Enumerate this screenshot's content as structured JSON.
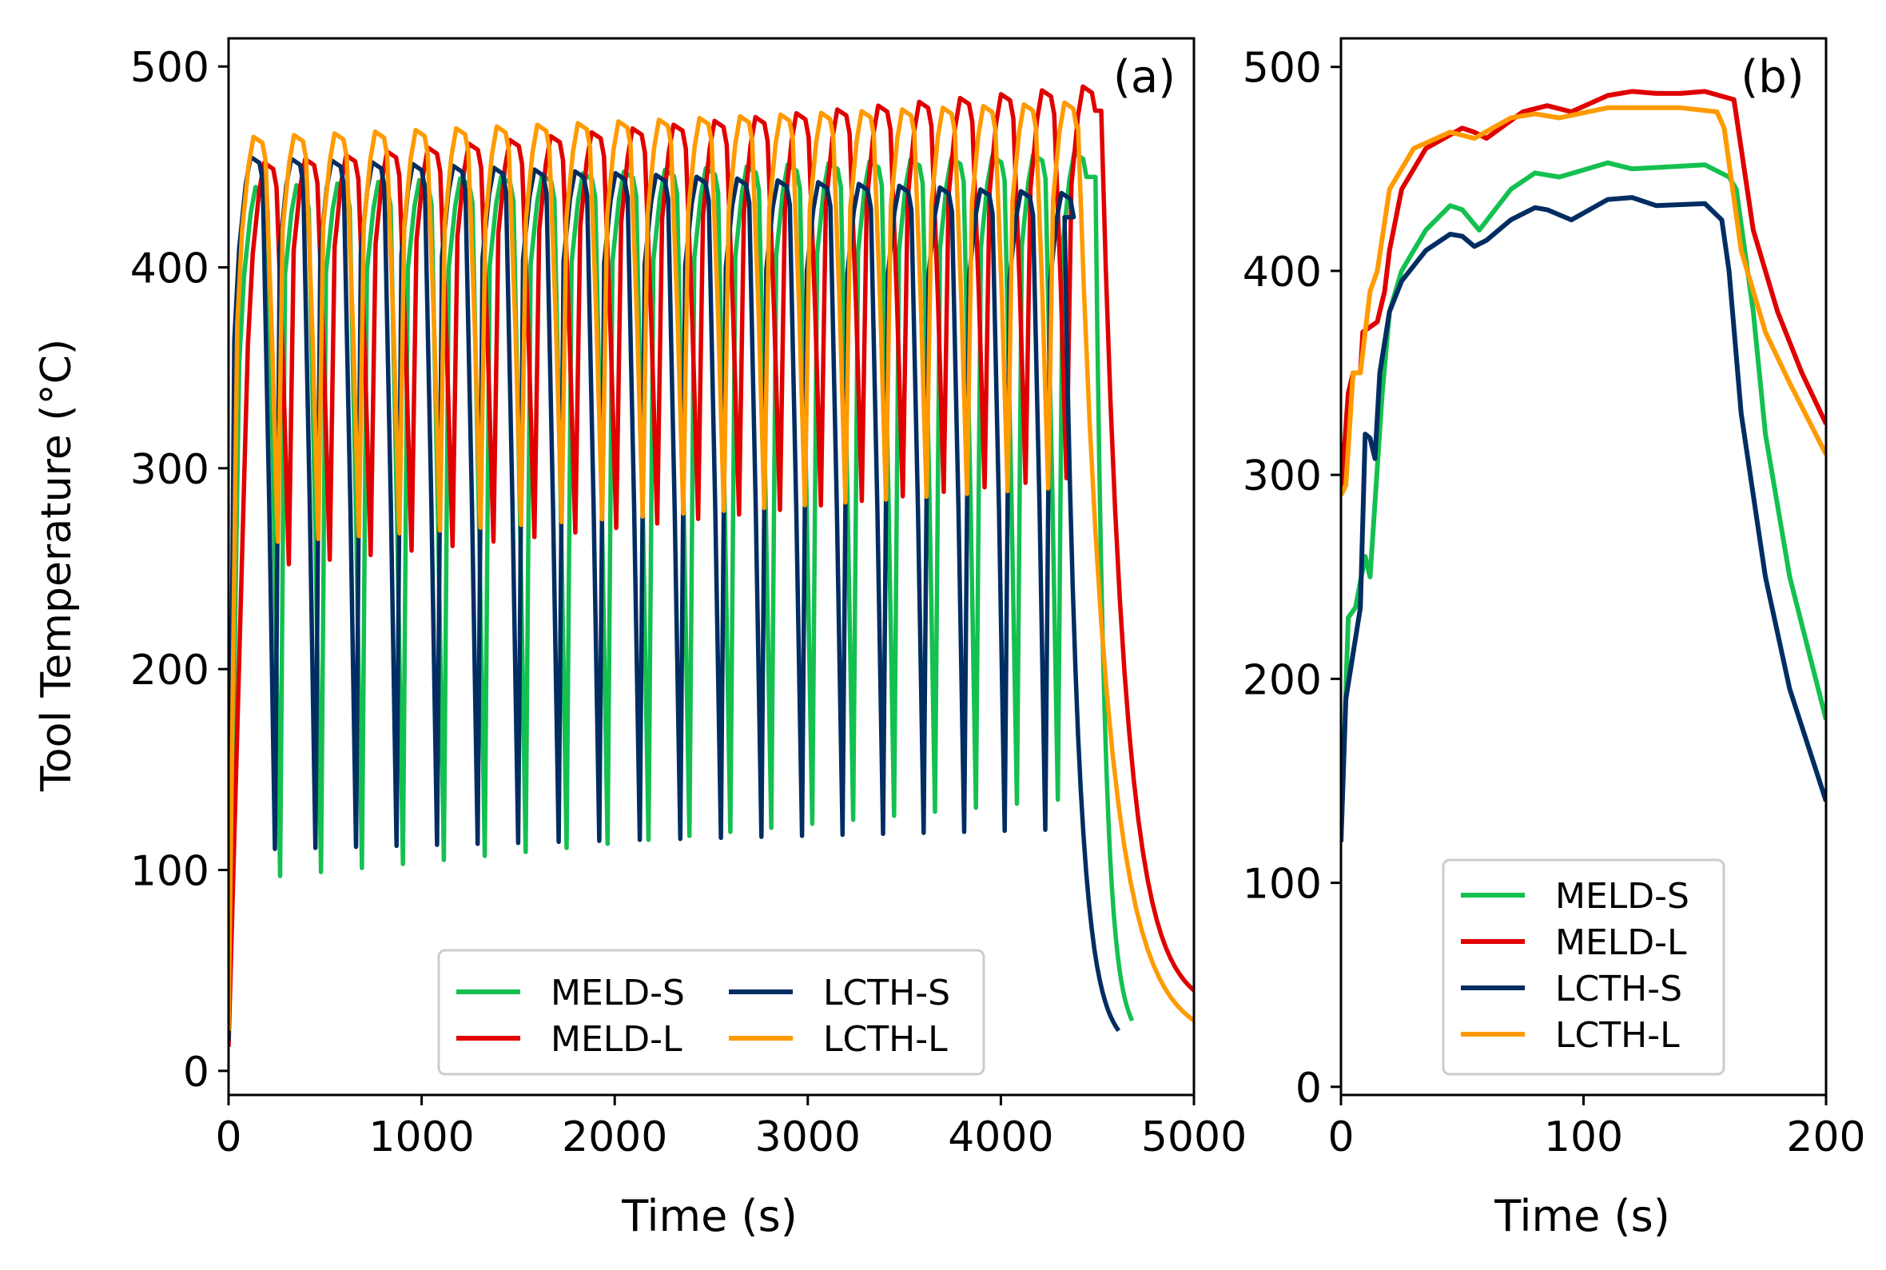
{
  "colors": {
    "MELD-S": "#14c050",
    "MELD-L": "#e00000",
    "LCTH-S": "#002d62",
    "LCTH-L": "#ff9a00"
  },
  "chart_data": [
    {
      "type": "line",
      "panel_label": "(a)",
      "xlabel": "Time (s)",
      "ylabel": "Tool Temperature (°C)",
      "xlim": [
        0,
        5000
      ],
      "ylim": [
        -12,
        514
      ],
      "xticks": [
        0,
        1000,
        2000,
        3000,
        4000,
        5000
      ],
      "yticks": [
        0,
        100,
        200,
        300,
        400,
        500
      ],
      "legend": {
        "placement": "lower-center",
        "columns": 2,
        "order": [
          "MELD-S",
          "MELD-L",
          "LCTH-S",
          "LCTH-L"
        ]
      },
      "series": [
        {
          "name": "MELD-S",
          "start_value": 15,
          "first_cycle_start": 40,
          "period": 212,
          "cycles": 21,
          "phase": 15,
          "peak_start": 440,
          "peak_end": 457,
          "trough_start": 95,
          "trough_end": 135,
          "end_time": 4490,
          "final_time": 4680,
          "final_value": 25
        },
        {
          "name": "MELD-L",
          "start_value": 12,
          "first_cycle_start": 60,
          "period": 212,
          "cycles": 21,
          "phase": 40,
          "peak_start": 452,
          "peak_end": 490,
          "trough_start": 250,
          "trough_end": 295,
          "end_time": 4520,
          "final_time": 5000,
          "final_value": 40
        },
        {
          "name": "LCTH-S",
          "start_value": 15,
          "first_cycle_start": 30,
          "period": 210,
          "cycles": 21,
          "phase": 0,
          "peak_start": 455,
          "peak_end": 437,
          "trough_start": 110,
          "trough_end": 120,
          "end_time": 4330,
          "final_time": 4610,
          "final_value": 20
        },
        {
          "name": "LCTH-L",
          "start_value": 20,
          "first_cycle_start": 20,
          "period": 210,
          "cycles": 21,
          "phase": 25,
          "peak_start": 465,
          "peak_end": 482,
          "trough_start": 262,
          "trough_end": 290,
          "end_time": 4400,
          "final_time": 5000,
          "final_value": 25
        }
      ]
    },
    {
      "type": "line",
      "panel_label": "(b)",
      "xlabel": "Time (s)",
      "ylabel": "",
      "xlim": [
        0,
        200
      ],
      "ylim": [
        -4,
        514
      ],
      "xticks": [
        0,
        100,
        200
      ],
      "yticks": [
        0,
        100,
        200,
        300,
        400,
        500
      ],
      "legend": {
        "placement": "lower-center",
        "columns": 1,
        "order": [
          "MELD-S",
          "MELD-L",
          "LCTH-S",
          "LCTH-L"
        ]
      },
      "series": [
        {
          "name": "MELD-S",
          "points": [
            [
              0,
              120
            ],
            [
              3,
              230
            ],
            [
              6,
              235
            ],
            [
              10,
              260
            ],
            [
              12,
              250
            ],
            [
              17,
              340
            ],
            [
              20,
              380
            ],
            [
              25,
              400
            ],
            [
              35,
              420
            ],
            [
              45,
              432
            ],
            [
              50,
              430
            ],
            [
              57,
              420
            ],
            [
              70,
              440
            ],
            [
              80,
              448
            ],
            [
              90,
              446
            ],
            [
              110,
              453
            ],
            [
              120,
              450
            ],
            [
              150,
              452
            ],
            [
              160,
              446
            ],
            [
              163,
              440
            ],
            [
              170,
              380
            ],
            [
              175,
              320
            ],
            [
              185,
              250
            ],
            [
              200,
              180
            ]
          ]
        },
        {
          "name": "MELD-L",
          "points": [
            [
              0,
              290
            ],
            [
              3,
              340
            ],
            [
              5,
              350
            ],
            [
              8,
              350
            ],
            [
              9,
              370
            ],
            [
              15,
              375
            ],
            [
              18,
              390
            ],
            [
              20,
              410
            ],
            [
              25,
              440
            ],
            [
              35,
              460
            ],
            [
              50,
              470
            ],
            [
              55,
              468
            ],
            [
              60,
              465
            ],
            [
              75,
              478
            ],
            [
              85,
              481
            ],
            [
              95,
              478
            ],
            [
              110,
              486
            ],
            [
              120,
              488
            ],
            [
              130,
              487
            ],
            [
              140,
              487
            ],
            [
              150,
              488
            ],
            [
              162,
              484
            ],
            [
              165,
              460
            ],
            [
              170,
              420
            ],
            [
              180,
              380
            ],
            [
              190,
              350
            ],
            [
              200,
              325
            ]
          ]
        },
        {
          "name": "LCTH-S",
          "points": [
            [
              0,
              120
            ],
            [
              2,
              190
            ],
            [
              8,
              235
            ],
            [
              10,
              320
            ],
            [
              12,
              318
            ],
            [
              14,
              308
            ],
            [
              16,
              350
            ],
            [
              20,
              380
            ],
            [
              25,
              395
            ],
            [
              35,
              410
            ],
            [
              45,
              418
            ],
            [
              50,
              417
            ],
            [
              55,
              412
            ],
            [
              60,
              415
            ],
            [
              70,
              425
            ],
            [
              80,
              431
            ],
            [
              85,
              430
            ],
            [
              95,
              425
            ],
            [
              110,
              435
            ],
            [
              120,
              436
            ],
            [
              130,
              432
            ],
            [
              150,
              433
            ],
            [
              157,
              425
            ],
            [
              160,
              400
            ],
            [
              165,
              330
            ],
            [
              175,
              250
            ],
            [
              185,
              195
            ],
            [
              200,
              140
            ]
          ]
        },
        {
          "name": "LCTH-L",
          "points": [
            [
              0,
              290
            ],
            [
              2,
              295
            ],
            [
              5,
              350
            ],
            [
              8,
              350
            ],
            [
              12,
              390
            ],
            [
              15,
              400
            ],
            [
              20,
              440
            ],
            [
              30,
              460
            ],
            [
              45,
              468
            ],
            [
              55,
              465
            ],
            [
              70,
              475
            ],
            [
              80,
              477
            ],
            [
              90,
              475
            ],
            [
              110,
              480
            ],
            [
              140,
              480
            ],
            [
              155,
              478
            ],
            [
              158,
              470
            ],
            [
              165,
              410
            ],
            [
              175,
              370
            ],
            [
              185,
              345
            ],
            [
              200,
              310
            ]
          ]
        }
      ]
    }
  ]
}
